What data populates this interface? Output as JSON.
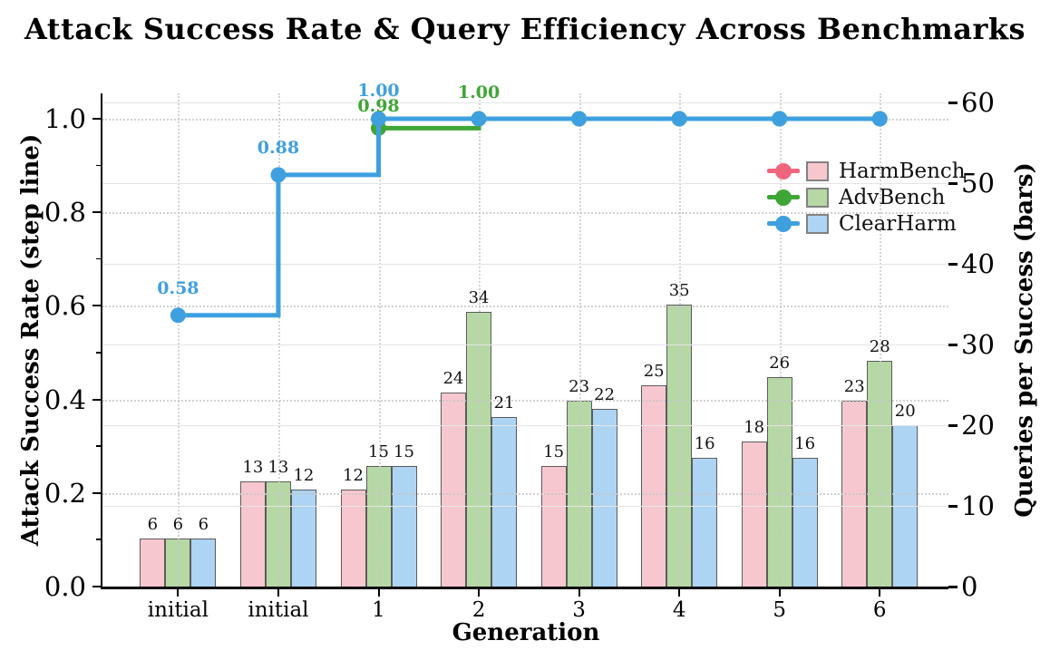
{
  "chart_data": {
    "type": "bar+step-line (dual axis)",
    "title": "Attack Success Rate & Query Efficiency Across Benchmarks",
    "xlabel": "Generation",
    "categories": [
      "initial",
      "initial",
      "1",
      "2",
      "3",
      "4",
      "5",
      "6"
    ],
    "left_axis": {
      "label": "Attack Success Rate (step line)",
      "tick_values": [
        0.0,
        0.2,
        0.4,
        0.6,
        0.8,
        1.0
      ],
      "tick_labels": [
        "0.0",
        "0.2",
        "0.4",
        "0.6",
        "0.8",
        "1.0"
      ],
      "range": [
        0.0,
        1.055
      ],
      "grid": "dotted"
    },
    "right_axis": {
      "label": "Queries per Success (bars)",
      "tick_values": [
        0,
        10,
        20,
        30,
        40,
        50,
        60
      ],
      "tick_labels": [
        "0",
        "10",
        "20",
        "30",
        "40",
        "50",
        "60"
      ],
      "range": [
        0,
        61
      ],
      "grid": "solid"
    },
    "series": [
      {
        "name": "HarmBench",
        "bar_color": "#f7c7cf",
        "line_color": "#f2657e",
        "queries_per_success": [
          6,
          13,
          12,
          24,
          15,
          25,
          18,
          23
        ],
        "attack_success_rate": [
          null,
          null,
          null,
          null,
          null,
          null,
          null,
          null
        ]
      },
      {
        "name": "AdvBench",
        "bar_color": "#b6d8a5",
        "line_color": "#3fa636",
        "queries_per_success": [
          6,
          13,
          15,
          34,
          23,
          35,
          26,
          28
        ],
        "attack_success_rate": [
          null,
          null,
          0.98,
          1.0,
          1.0,
          1.0,
          1.0,
          1.0
        ]
      },
      {
        "name": "ClearHarm",
        "bar_color": "#aed4f3",
        "line_color": "#3fa0e0",
        "queries_per_success": [
          6,
          12,
          15,
          21,
          22,
          16,
          16,
          20
        ],
        "attack_success_rate": [
          0.58,
          0.88,
          1.0,
          1.0,
          1.0,
          1.0,
          1.0,
          1.0
        ]
      }
    ],
    "annotations": [
      {
        "text": "0.58",
        "series": "ClearHarm",
        "x_index": 0,
        "y": 0.58,
        "dy": -40
      },
      {
        "text": "0.88",
        "series": "ClearHarm",
        "x_index": 1,
        "y": 0.88,
        "dy": -40
      },
      {
        "text": "1.00",
        "series": "ClearHarm",
        "x_index": 2,
        "y": 1.0,
        "dy": -41
      },
      {
        "text": "0.98",
        "series": "AdvBench",
        "x_index": 2,
        "y": 0.98,
        "dy": -34
      },
      {
        "text": "1.00",
        "series": "AdvBench",
        "x_index": 3,
        "y": 1.0,
        "dy": -39
      }
    ],
    "legend": {
      "position": "upper right",
      "frame": false,
      "entries": [
        "HarmBench",
        "AdvBench",
        "ClearHarm"
      ]
    },
    "style": {
      "bar_edge_color": "#5b5b5b",
      "grid_dotted_color": "#c6c6c6",
      "grid_solid_color": "#e4e4e4",
      "spine_color": "#000000"
    }
  }
}
